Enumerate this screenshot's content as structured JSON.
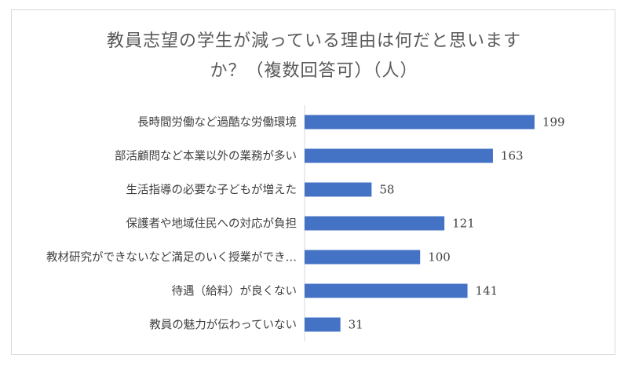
{
  "chart_data": {
    "type": "bar",
    "orientation": "horizontal",
    "title_line1": "教員志望の学生が減っている理由は何だと思います",
    "title_line2": "か？（複数回答可）（人）",
    "categories": [
      "長時間労働など過酷な労働環境",
      "部活顧問など本業以外の業務が多い",
      "生活指導の必要な子どもが増えた",
      "保護者や地域住民への対応が負担",
      "教材研究ができないなど満足のいく授業ができ…",
      "待遇（給料）が良くない",
      "教員の魅力が伝わっていない"
    ],
    "values": [
      199,
      163,
      58,
      121,
      100,
      141,
      31
    ],
    "xlim": [
      0,
      250
    ],
    "grid": false,
    "legend": "none",
    "bar_color": "#4472c4"
  }
}
